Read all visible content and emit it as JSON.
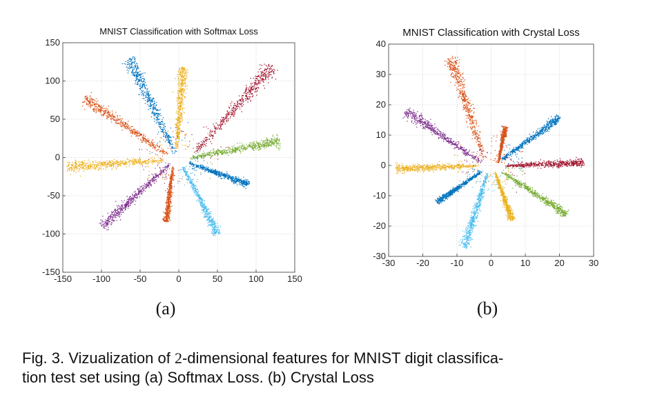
{
  "colors": {
    "c0": "#0072BD",
    "c1": "#D95319",
    "c2": "#EDB120",
    "c3": "#7E2F8E",
    "c4": "#77AC30",
    "c5": "#4DBEEE",
    "c6": "#A2142F"
  },
  "chart_data": [
    {
      "type": "scatter",
      "title": "MNIST Classification with Softmax Loss",
      "panel_label": "(a)",
      "xlim": [
        -150,
        150
      ],
      "ylim": [
        -150,
        150
      ],
      "xticks": [
        "-150",
        "-100",
        "-50",
        "0",
        "50",
        "100",
        "150"
      ],
      "yticks": [
        "150",
        "100",
        "50",
        "0",
        "-50",
        "-100",
        "-150"
      ],
      "grid": true,
      "series": [
        {
          "name": "class-blue",
          "color": "c0",
          "start": [
            -5,
            6
          ],
          "end": [
            -65,
            130
          ]
        },
        {
          "name": "class-yellow",
          "color": "c2",
          "start": [
            -3,
            12
          ],
          "end": [
            5,
            118
          ]
        },
        {
          "name": "class-dark-red",
          "color": "c6",
          "start": [
            20,
            6
          ],
          "end": [
            120,
            120
          ]
        },
        {
          "name": "class-orange",
          "color": "c1",
          "start": [
            -15,
            4
          ],
          "end": [
            -122,
            78
          ]
        },
        {
          "name": "class-green",
          "color": "c4",
          "start": [
            15,
            0
          ],
          "end": [
            130,
            22
          ]
        },
        {
          "name": "class-yellow-2",
          "color": "c2",
          "start": [
            -20,
            -3
          ],
          "end": [
            -145,
            -12
          ]
        },
        {
          "name": "class-blue-2",
          "color": "c0",
          "start": [
            12,
            -6
          ],
          "end": [
            90,
            -35
          ]
        },
        {
          "name": "class-purple",
          "color": "c3",
          "start": [
            -12,
            -8
          ],
          "end": [
            -100,
            -90
          ]
        },
        {
          "name": "class-orange-2",
          "color": "c1",
          "start": [
            -8,
            -12
          ],
          "end": [
            -17,
            -83
          ]
        },
        {
          "name": "class-light-blue",
          "color": "c5",
          "start": [
            5,
            -12
          ],
          "end": [
            50,
            -100
          ]
        }
      ]
    },
    {
      "type": "scatter",
      "title": "MNIST Classification with Crystal Loss",
      "panel_label": "(b)",
      "xlim": [
        -30,
        30
      ],
      "ylim": [
        -30,
        40
      ],
      "xticks": [
        "-30",
        "-20",
        "-10",
        "0",
        "10",
        "20",
        "30"
      ],
      "yticks": [
        "40",
        "30",
        "20",
        "10",
        "0",
        "-10",
        "-20",
        "-30"
      ],
      "grid": true,
      "series": [
        {
          "name": "class-orange",
          "color": "c1",
          "start": [
            -2,
            2
          ],
          "end": [
            -12,
            36
          ]
        },
        {
          "name": "class-orange-2",
          "color": "c1",
          "start": [
            2,
            1
          ],
          "end": [
            4,
            13
          ]
        },
        {
          "name": "class-purple",
          "color": "c3",
          "start": [
            -3,
            1
          ],
          "end": [
            -25,
            18
          ]
        },
        {
          "name": "class-blue",
          "color": "c0",
          "start": [
            3,
            2
          ],
          "end": [
            20,
            16
          ]
        },
        {
          "name": "class-dark-red",
          "color": "c6",
          "start": [
            4,
            0
          ],
          "end": [
            27,
            1
          ]
        },
        {
          "name": "class-yellow",
          "color": "c2",
          "start": [
            -4,
            0
          ],
          "end": [
            -28,
            -1
          ]
        },
        {
          "name": "class-blue-2",
          "color": "c0",
          "start": [
            -3,
            -2
          ],
          "end": [
            -16,
            -12
          ]
        },
        {
          "name": "class-green",
          "color": "c4",
          "start": [
            3,
            -2
          ],
          "end": [
            22,
            -16
          ]
        },
        {
          "name": "class-yellow-2",
          "color": "c2",
          "start": [
            1,
            -2
          ],
          "end": [
            6,
            -18
          ]
        },
        {
          "name": "class-light-blue",
          "color": "c5",
          "start": [
            -1,
            -2
          ],
          "end": [
            -8,
            -27
          ]
        }
      ]
    }
  ],
  "caption": {
    "prefix": "Fig. 3. Vizualization of ",
    "number": "2",
    "suffix": "-dimensional features for MNIST digit classifica-",
    "line2": "tion test set using (a) Softmax Loss. (b) Crystal Loss"
  }
}
